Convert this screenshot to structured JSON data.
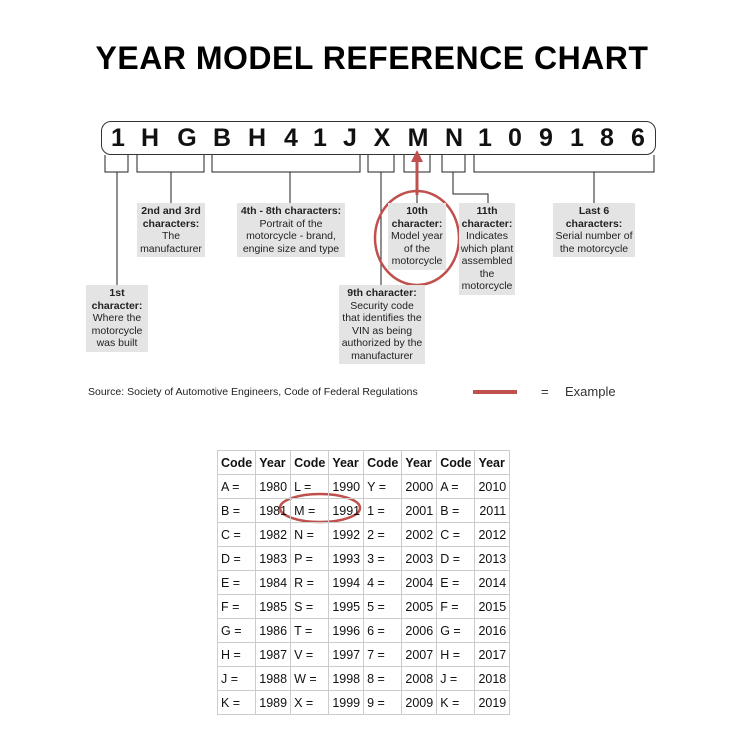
{
  "title": "YEAR MODEL REFERENCE CHART",
  "vin": [
    "1",
    "H",
    "G",
    "B",
    "H",
    "4",
    "1",
    "J",
    "X",
    "M",
    "N",
    "1",
    "0",
    "9",
    "1",
    "8",
    "6"
  ],
  "labels": {
    "first": {
      "head": "1st character:",
      "body": "Where the motorcycle was built"
    },
    "second_third": {
      "head": "2nd and 3rd characters:",
      "body": "The manufacturer"
    },
    "fourth_eighth": {
      "head": "4th - 8th characters:",
      "body": "Portrait of the motorcycle - brand, engine size and type"
    },
    "ninth": {
      "head": "9th character:",
      "body": "Security code that identifies the VIN as being authorized by the manufacturer"
    },
    "tenth": {
      "head": "10th character:",
      "body": "Model year of the motorcycle"
    },
    "eleventh": {
      "head": "11th character:",
      "body": "Indicates which plant assembled the motorcycle"
    },
    "last6": {
      "head": "Last 6 characters:",
      "body": "Serial number of the motorcycle"
    }
  },
  "source": "Source:  Society of Automotive Engineers, Code of Federal Regulations",
  "legend": {
    "equals": "=",
    "example": "Example"
  },
  "colors": {
    "highlight": "#c0504d",
    "label_bg": "#e4e4e4"
  },
  "table": {
    "headers": [
      "Code",
      "Year",
      "Code",
      "Year",
      "Code",
      "Year",
      "Code",
      "Year"
    ],
    "rows": [
      [
        "A =",
        "1980",
        "L =",
        "1990",
        "Y =",
        "2000",
        "A =",
        "2010"
      ],
      [
        "B =",
        "1981",
        "M =",
        "1991",
        "1 =",
        "2001",
        "B =",
        "2011"
      ],
      [
        "C =",
        "1982",
        "N =",
        "1992",
        "2 =",
        "2002",
        "C =",
        "2012"
      ],
      [
        "D =",
        "1983",
        "P =",
        "1993",
        "3 =",
        "2003",
        "D =",
        "2013"
      ],
      [
        "E =",
        "1984",
        "R =",
        "1994",
        "4 =",
        "2004",
        "E =",
        "2014"
      ],
      [
        "F =",
        "1985",
        "S =",
        "1995",
        "5 =",
        "2005",
        "F =",
        "2015"
      ],
      [
        "G =",
        "1986",
        "T =",
        "1996",
        "6 =",
        "2006",
        "G =",
        "2016"
      ],
      [
        "H =",
        "1987",
        "V =",
        "1997",
        "7 =",
        "2007",
        "H =",
        "2017"
      ],
      [
        "J =",
        "1988",
        "W =",
        "1998",
        "8 =",
        "2008",
        "J =",
        "2018"
      ],
      [
        "K =",
        "1989",
        "X =",
        "1999",
        "9 =",
        "2009",
        "K =",
        "2019"
      ]
    ]
  }
}
